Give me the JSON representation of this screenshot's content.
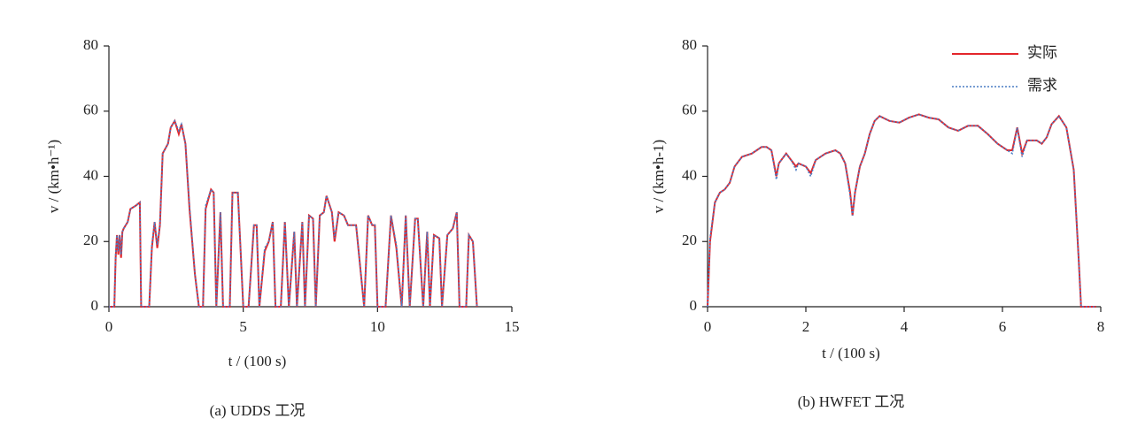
{
  "chart_data": [
    {
      "type": "line",
      "caption": "(a) UDDS 工况",
      "xlabel": "t / (100 s)",
      "ylabel": "v / (km•h⁻¹)",
      "x": [
        0,
        0.2,
        0.25,
        0.3,
        0.35,
        0.4,
        0.45,
        0.5,
        0.55,
        0.7,
        0.8,
        1.0,
        1.15,
        1.2,
        1.5,
        1.6,
        1.7,
        1.8,
        1.9,
        2.0,
        2.2,
        2.3,
        2.45,
        2.6,
        2.7,
        2.85,
        3.0,
        3.2,
        3.35,
        3.5,
        3.6,
        3.8,
        3.9,
        4.0,
        4.15,
        4.25,
        4.5,
        4.6,
        4.8,
        5.0,
        5.2,
        5.4,
        5.5,
        5.6,
        5.8,
        5.95,
        6.1,
        6.2,
        6.4,
        6.55,
        6.7,
        6.9,
        7.0,
        7.2,
        7.3,
        7.45,
        7.6,
        7.7,
        7.85,
        8.0,
        8.1,
        8.3,
        8.4,
        8.55,
        8.75,
        8.9,
        9.2,
        9.5,
        9.65,
        9.8,
        9.9,
        10.0,
        10.3,
        10.5,
        10.7,
        10.9,
        11.05,
        11.2,
        11.4,
        11.5,
        11.7,
        11.85,
        11.95,
        12.1,
        12.3,
        12.4,
        12.6,
        12.8,
        12.95,
        13.05,
        13.3,
        13.4,
        13.55,
        13.7
      ],
      "series": [
        {
          "color": "#e3262b",
          "dash": false,
          "values": [
            0,
            0,
            15,
            22,
            16,
            22,
            15,
            23,
            24,
            26,
            30,
            31,
            32,
            0,
            0,
            18,
            26,
            18,
            25,
            47,
            50,
            55,
            57,
            53,
            56,
            50,
            30,
            10,
            0,
            0,
            30,
            36,
            35,
            0,
            29,
            0,
            0,
            35,
            35,
            0,
            0,
            25,
            25,
            0,
            17,
            20,
            26,
            0,
            0,
            26,
            0,
            23,
            0,
            26,
            0,
            28,
            27,
            0,
            28,
            29,
            34,
            29,
            20,
            29,
            28,
            25,
            25,
            0,
            28,
            25,
            25,
            0,
            0,
            28,
            18,
            0,
            28,
            0,
            27,
            27,
            0,
            23,
            0,
            22,
            21,
            0,
            22,
            24,
            29,
            0,
            0,
            22,
            20,
            0
          ]
        },
        {
          "color": "#4a7cc4",
          "dash": true,
          "values": [
            0,
            0,
            16,
            22,
            17,
            22,
            16,
            23,
            24,
            26,
            30,
            31,
            32,
            0,
            0,
            19,
            26,
            19,
            25,
            47,
            50,
            55,
            57,
            54,
            56,
            50,
            31,
            10,
            0,
            0,
            31,
            36,
            35,
            0,
            29,
            0,
            0,
            35,
            35,
            0,
            0,
            25,
            25,
            0,
            18,
            20,
            26,
            0,
            0,
            26,
            0,
            23,
            0,
            26,
            0,
            28,
            27,
            0,
            28,
            29,
            34,
            29,
            21,
            29,
            28,
            25,
            25,
            0,
            28,
            25,
            25,
            0,
            0,
            28,
            19,
            0,
            28,
            0,
            27,
            27,
            0,
            23,
            0,
            22,
            21,
            0,
            22,
            24,
            29,
            0,
            0,
            22,
            20,
            0
          ]
        }
      ],
      "xlim": [
        0,
        15
      ],
      "xticks": [
        0,
        5,
        10,
        15
      ],
      "ylim": [
        0,
        80
      ],
      "yticks": [
        0,
        20,
        40,
        60,
        80
      ]
    },
    {
      "type": "line",
      "caption": "(b) HWFET 工况",
      "xlabel": "t / (100 s)",
      "ylabel": "v / (km•h-1)",
      "legend": "upper right",
      "x": [
        0,
        0.05,
        0.15,
        0.25,
        0.35,
        0.45,
        0.55,
        0.7,
        0.9,
        1.0,
        1.1,
        1.2,
        1.3,
        1.4,
        1.45,
        1.6,
        1.7,
        1.8,
        1.85,
        2.0,
        2.1,
        2.2,
        2.4,
        2.6,
        2.7,
        2.8,
        2.9,
        2.95,
        3.0,
        3.1,
        3.2,
        3.3,
        3.4,
        3.5,
        3.7,
        3.9,
        4.1,
        4.3,
        4.5,
        4.7,
        4.9,
        5.1,
        5.3,
        5.5,
        5.7,
        5.9,
        6.1,
        6.2,
        6.3,
        6.4,
        6.5,
        6.7,
        6.8,
        6.9,
        7.0,
        7.15,
        7.3,
        7.45,
        7.55,
        7.6,
        7.9
      ],
      "series": [
        {
          "name": "实际",
          "color": "#e3262b",
          "dash": false,
          "values": [
            0,
            20,
            32,
            35,
            36,
            38,
            43,
            46,
            47,
            48,
            49,
            49,
            48,
            40,
            44,
            47,
            45,
            43,
            44,
            43,
            41,
            45,
            47,
            48,
            47,
            44,
            35,
            28,
            35,
            43,
            47,
            53,
            57,
            58.5,
            57,
            56.5,
            58,
            59,
            58,
            57.5,
            55,
            54,
            55.5,
            55.5,
            53,
            50,
            48,
            48,
            55,
            47,
            51,
            51,
            50,
            52,
            56,
            58.5,
            55,
            42,
            15,
            0,
            0
          ]
        },
        {
          "name": "需求",
          "color": "#4a7cc4",
          "dash": true,
          "values": [
            0,
            21,
            32,
            35,
            36,
            38,
            43,
            46,
            47,
            48,
            49,
            49,
            48,
            39,
            44,
            47,
            45,
            42,
            44,
            43,
            40,
            45,
            47,
            48,
            47,
            44,
            34,
            28,
            35,
            43,
            47,
            53,
            57,
            58.5,
            57,
            56.5,
            58,
            59,
            58,
            57.5,
            55,
            54,
            55.5,
            55.5,
            53,
            50,
            48,
            47,
            55,
            46,
            51,
            51,
            50,
            52,
            56,
            58.5,
            55,
            42,
            15,
            0,
            0
          ]
        }
      ],
      "xlim": [
        0,
        8
      ],
      "xticks": [
        0,
        2,
        4,
        6,
        8
      ],
      "ylim": [
        0,
        80
      ],
      "yticks": [
        0,
        20,
        40,
        60,
        80
      ]
    }
  ]
}
